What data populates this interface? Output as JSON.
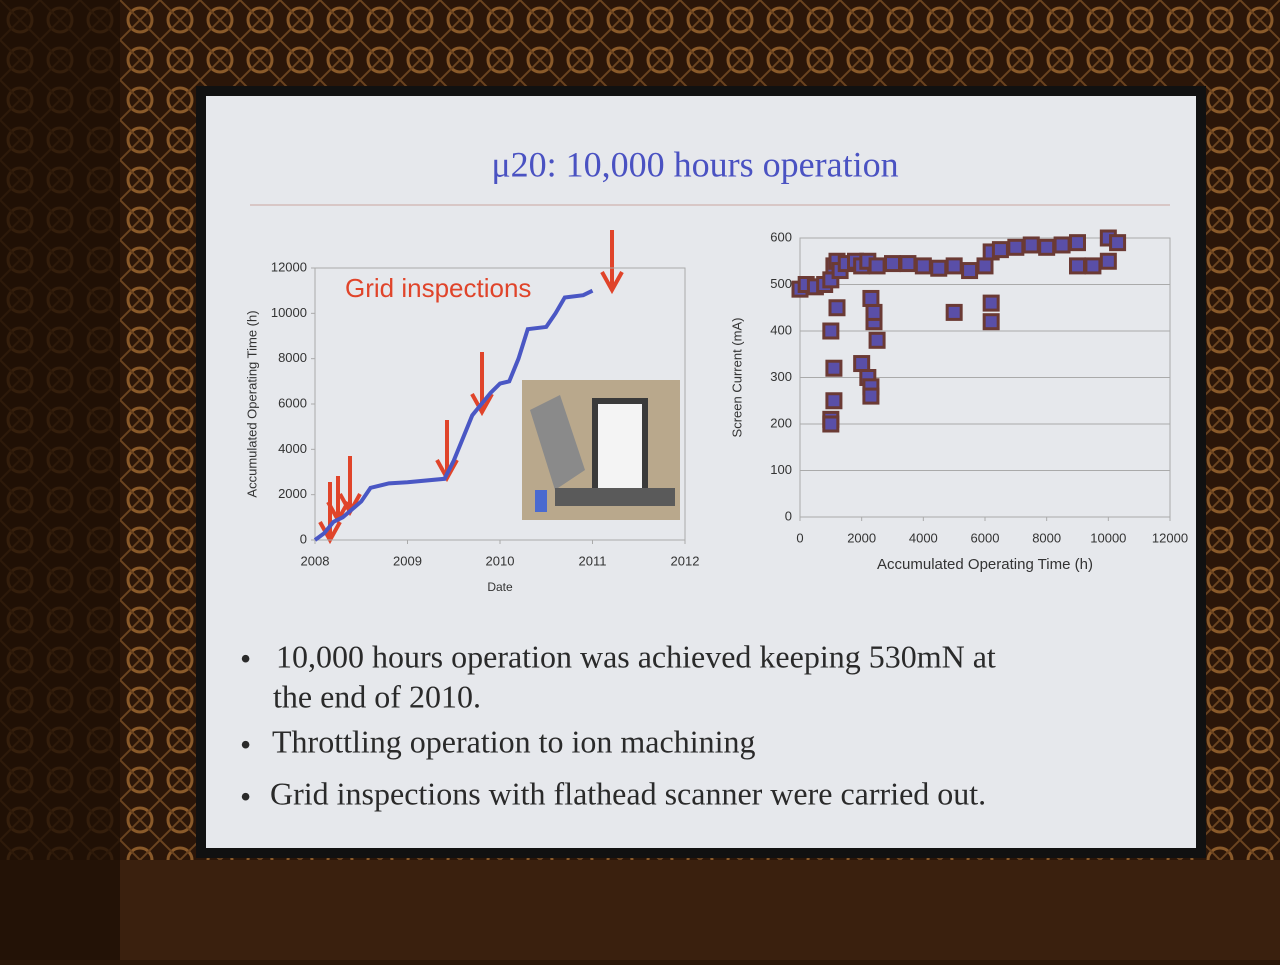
{
  "slide": {
    "title": "μ20: 10,000 hours operation",
    "bullets": [
      "10,000 hours operation was achieved keeping 530mN at",
      "the end of 2010.",
      "Throttling operation to ion machining",
      "Grid inspections with flathead scanner were carried out."
    ]
  },
  "chart_data": [
    {
      "type": "line",
      "annotation": "Grid inspections",
      "x_label": "Date",
      "y_label": "Accumulated Operating Time (h)",
      "x": [
        2008.0,
        2008.1,
        2008.2,
        2008.3,
        2008.5,
        2008.6,
        2008.8,
        2009.0,
        2009.4,
        2009.5,
        2009.6,
        2009.7,
        2009.8,
        2009.9,
        2010.0,
        2010.1,
        2010.2,
        2010.3,
        2010.5,
        2010.6,
        2010.7,
        2010.9,
        2011.0
      ],
      "values": [
        0,
        300,
        800,
        1000,
        1700,
        2300,
        2500,
        2550,
        2700,
        3500,
        4500,
        5500,
        6000,
        6500,
        6900,
        7000,
        8000,
        9300,
        9400,
        10000,
        10700,
        10800,
        11000
      ],
      "color": "#4a57c4",
      "xlim": [
        2008,
        2012
      ],
      "xticks": [
        2008,
        2009,
        2010,
        2011,
        2012
      ],
      "ylim": [
        0,
        12000
      ],
      "yticks": [
        0,
        2000,
        4000,
        6000,
        8000,
        10000,
        12000
      ],
      "grid": false
    },
    {
      "type": "scatter",
      "x_label": "Accumulated Operating Time (h)",
      "y_label": "Screen Current (mA)",
      "x": [
        0,
        200,
        500,
        800,
        1000,
        1100,
        1200,
        1300,
        1500,
        1800,
        2000,
        2200,
        2500,
        3000,
        3500,
        4000,
        4500,
        5000,
        5500,
        6000,
        6200,
        6500,
        7000,
        7500,
        8000,
        8500,
        9000,
        9000,
        9500,
        10000,
        10000,
        10300,
        1000,
        1000,
        1000,
        1100,
        1100,
        2000,
        2200,
        2300,
        2300,
        2400,
        2400,
        2300,
        1200,
        5000,
        6200,
        6200,
        2500
      ],
      "values": [
        490,
        500,
        495,
        500,
        510,
        540,
        550,
        530,
        545,
        550,
        540,
        550,
        540,
        545,
        545,
        540,
        535,
        540,
        530,
        540,
        570,
        575,
        580,
        585,
        580,
        585,
        590,
        540,
        540,
        550,
        600,
        590,
        400,
        210,
        200,
        250,
        320,
        330,
        300,
        280,
        260,
        420,
        440,
        470,
        450,
        440,
        420,
        460,
        380
      ],
      "color": "#5a4fa8",
      "xlim": [
        0,
        12000
      ],
      "xticks": [
        0,
        2000,
        4000,
        6000,
        8000,
        10000,
        12000
      ],
      "ylim": [
        0,
        600
      ],
      "yticks": [
        0,
        100,
        200,
        300,
        400,
        500,
        600
      ],
      "grid": true
    }
  ]
}
